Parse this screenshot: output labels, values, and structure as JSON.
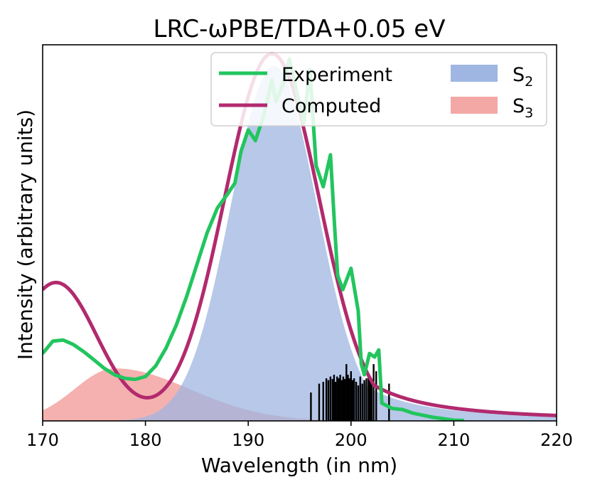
{
  "chart_data": {
    "type": "line",
    "title": "LRC-ωPBE/TDA+0.05 eV",
    "xlabel": "Wavelength (in nm)",
    "ylabel": "Intensity (arbitrary units)",
    "xlim": [
      170,
      220
    ],
    "ylim": [
      0,
      1.06
    ],
    "x_ticks": [
      170,
      180,
      190,
      200,
      210,
      220
    ],
    "x_tick_labels": [
      "170",
      "180",
      "190",
      "200",
      "210",
      "220"
    ],
    "y_ticks_shown": false,
    "legend": {
      "placement": "top-right",
      "entries": [
        {
          "key": "experiment",
          "label": "Experiment",
          "kind": "line",
          "color": "#22c55e"
        },
        {
          "key": "s2",
          "label": "S",
          "sub": "2",
          "kind": "patch",
          "color": "#9fb6e2"
        },
        {
          "key": "computed",
          "label": "Computed",
          "kind": "line",
          "color": "#b22a6e"
        },
        {
          "key": "s3",
          "label": "S",
          "sub": "3",
          "kind": "patch",
          "color": "#f4a8a6"
        }
      ]
    },
    "series": [
      {
        "name": "Experiment",
        "kind": "line",
        "color": "#22c55e",
        "x": [
          170,
          171,
          172,
          173,
          174,
          175,
          176,
          177,
          178,
          179,
          180,
          181,
          182,
          183,
          184,
          185,
          186,
          187,
          188,
          188.7,
          189.3,
          190,
          190.7,
          191.5,
          192.3,
          192.7,
          193.4,
          194,
          194.7,
          195.4,
          196,
          196.6,
          197.3,
          198,
          198.4,
          198.7,
          199.2,
          200,
          200.7,
          201,
          201.3,
          201.8,
          202.3,
          202.7,
          203,
          204,
          205,
          206,
          207,
          208,
          209,
          210,
          211
        ],
        "y": [
          0.19,
          0.225,
          0.228,
          0.215,
          0.195,
          0.172,
          0.148,
          0.13,
          0.12,
          0.117,
          0.125,
          0.155,
          0.205,
          0.27,
          0.35,
          0.44,
          0.53,
          0.6,
          0.64,
          0.67,
          0.76,
          0.82,
          0.79,
          0.86,
          0.96,
          0.9,
          0.95,
          1.02,
          0.93,
          0.84,
          0.99,
          0.72,
          0.66,
          0.75,
          0.55,
          0.41,
          0.37,
          0.43,
          0.31,
          0.16,
          0.13,
          0.19,
          0.18,
          0.2,
          0.05,
          0.035,
          0.032,
          0.022,
          0.016,
          0.01,
          0.006,
          0.002,
          0.001
        ]
      },
      {
        "name": "Computed",
        "kind": "line",
        "color": "#b22a6e",
        "components": [
          {
            "center": 192.3,
            "sigma": 4.6,
            "amplitude": 1.035,
            "tail_decay": 4.6
          },
          {
            "center": 171.3,
            "sigma": 4.0,
            "amplitude": 0.39
          }
        ]
      },
      {
        "name": "S2",
        "kind": "area",
        "color": "#9fb6e2",
        "components": [
          {
            "center": 192.5,
            "sigma": 4.2,
            "amplitude": 1.0,
            "tail_decay": 4.2
          }
        ]
      },
      {
        "name": "S3",
        "kind": "area",
        "color": "#f4a8a6",
        "components": [
          {
            "center": 177.0,
            "sigma_left": 3.9,
            "sigma_right": 7.3,
            "amplitude": 0.148
          }
        ]
      }
    ],
    "stick_spectrum": {
      "color": "#000000",
      "x": [
        196.1,
        196.9,
        197.3,
        197.6,
        197.8,
        198.0,
        198.2,
        198.35,
        198.5,
        198.65,
        198.8,
        198.95,
        199.1,
        199.25,
        199.4,
        199.55,
        199.7,
        199.85,
        200.0,
        200.15,
        200.3,
        200.5,
        200.7,
        200.9,
        201.1,
        201.3,
        201.5,
        201.7,
        201.85,
        202.0,
        202.2,
        202.45,
        203.7
      ],
      "y": [
        0.08,
        0.105,
        0.11,
        0.12,
        0.115,
        0.125,
        0.118,
        0.13,
        0.11,
        0.125,
        0.12,
        0.13,
        0.115,
        0.125,
        0.118,
        0.16,
        0.13,
        0.12,
        0.14,
        0.115,
        0.12,
        0.11,
        0.1,
        0.125,
        0.105,
        0.115,
        0.12,
        0.13,
        0.115,
        0.11,
        0.16,
        0.14,
        0.105
      ]
    }
  }
}
